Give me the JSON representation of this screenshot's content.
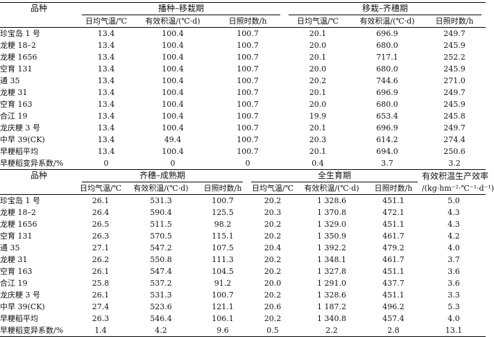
{
  "table1": {
    "corner": "品种",
    "group1": "播种–移栽期",
    "group2": "移栽–齐穗期",
    "sub": [
      "日均气温/℃",
      "有效积温/(℃·d)",
      "日照时数/h",
      "日均气温/℃",
      "有效积温/(℃·d)",
      "日照时数/h"
    ],
    "rows": [
      [
        "珍宝岛 1 号",
        "13.4",
        "100.4",
        "100.7",
        "20.1",
        "696.9",
        "249.7"
      ],
      [
        "龙粳 18–2",
        "13.4",
        "100.4",
        "100.7",
        "20.0",
        "680.0",
        "245.9"
      ],
      [
        "龙粳 1656",
        "13.4",
        "100.4",
        "100.7",
        "20.1",
        "717.1",
        "252.2"
      ],
      [
        "空育 131",
        "13.4",
        "100.4",
        "100.7",
        "20.0",
        "680.0",
        "245.9"
      ],
      [
        "通 35",
        "13.4",
        "100.4",
        "100.7",
        "20.2",
        "744.6",
        "271.0"
      ],
      [
        "龙粳 31",
        "13.4",
        "100.4",
        "100.7",
        "20.1",
        "696.9",
        "249.7"
      ],
      [
        "空育 163",
        "13.4",
        "100.4",
        "100.7",
        "20.0",
        "680.0",
        "245.9"
      ],
      [
        "合江 19",
        "13.4",
        "100.4",
        "100.7",
        "19.9",
        "653.4",
        "245.8"
      ],
      [
        "龙庆粳 3 号",
        "13.4",
        "100.4",
        "100.7",
        "20.1",
        "696.9",
        "249.7"
      ],
      [
        "中早 39(CK)",
        "13.4",
        "49.4",
        "100.7",
        "20.3",
        "614.2",
        "274.4"
      ],
      [
        "早粳稻平均",
        "13.4",
        "100.4",
        "100.7",
        "20.1",
        "694.0",
        "250.6"
      ],
      [
        "早粳稻变异系数/%",
        "0",
        "0",
        "0",
        "0.4",
        "3.7",
        "3.2"
      ]
    ]
  },
  "table2": {
    "corner": "品种",
    "group1": "齐穗–成熟期",
    "group2": "全生育期",
    "group3": "有效积温生产效率",
    "group3_unit": "/(kg·hm⁻²·℃⁻¹·d⁻¹)",
    "sub": [
      "日均气温/℃",
      "有效积温/(℃·d)",
      "日照时数/h",
      "日均气温/℃",
      "有效积温/(℃·d)",
      "日照时数/h"
    ],
    "rows": [
      [
        "珍宝岛 1 号",
        "26.1",
        "531.3",
        "100.7",
        "20.2",
        "1 328.6",
        "451.1",
        "5.0"
      ],
      [
        "龙粳 18–2",
        "26.4",
        "590.4",
        "125.5",
        "20.3",
        "1 370.8",
        "472.1",
        "4.3"
      ],
      [
        "龙粳 1656",
        "26.5",
        "511.5",
        "98.2",
        "20.2",
        "1 329.0",
        "451.1",
        "4.3"
      ],
      [
        "空育 131",
        "26.3",
        "570.5",
        "115.1",
        "20.2",
        "1 350.9",
        "461.7",
        "4.2"
      ],
      [
        "通 35",
        "27.1",
        "547.2",
        "107.5",
        "20.4",
        "1 392.2",
        "479.2",
        "4.0"
      ],
      [
        "龙粳 31",
        "26.2",
        "550.8",
        "111.3",
        "20.2",
        "1 348.1",
        "461.7",
        "3.7"
      ],
      [
        "空育 163",
        "26.1",
        "547.4",
        "104.5",
        "20.2",
        "1 327.8",
        "451.1",
        "3.6"
      ],
      [
        "合江 19",
        "25.8",
        "537.2",
        "91.2",
        "20.0",
        "1 291.0",
        "437.7",
        "3.6"
      ],
      [
        "龙庆粳 3 号",
        "26.1",
        "531.3",
        "100.7",
        "20.2",
        "1 328.6",
        "451.1",
        "3.3"
      ],
      [
        "中早 39(CK)",
        "27.4",
        "523.6",
        "121.1",
        "20.6",
        "1 187.2",
        "496.2",
        "5.3"
      ],
      [
        "早粳稻平均",
        "26.3",
        "546.4",
        "106.1",
        "20.2",
        "1 340.8",
        "457.4",
        "4.0"
      ],
      [
        "早粳稻变异系数/%",
        "1.4",
        "4.2",
        "9.6",
        "0.5",
        "2.2",
        "2.8",
        "13.1"
      ]
    ]
  }
}
